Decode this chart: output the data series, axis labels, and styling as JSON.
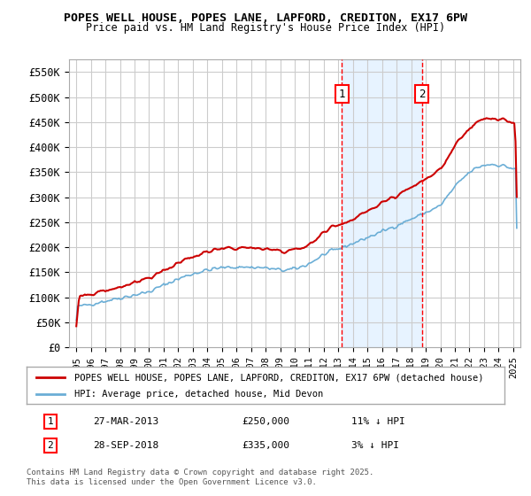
{
  "title1": "POPES WELL HOUSE, POPES LANE, LAPFORD, CREDITON, EX17 6PW",
  "title2": "Price paid vs. HM Land Registry's House Price Index (HPI)",
  "ylabel_ticks": [
    "£0",
    "£50K",
    "£100K",
    "£150K",
    "£200K",
    "£250K",
    "£300K",
    "£350K",
    "£400K",
    "£450K",
    "£500K",
    "£550K"
  ],
  "ytick_vals": [
    0,
    50000,
    100000,
    150000,
    200000,
    250000,
    300000,
    350000,
    400000,
    450000,
    500000,
    550000
  ],
  "ylim": [
    0,
    575000
  ],
  "xlim_start": 1994.5,
  "xlim_end": 2025.5,
  "hpi_color": "#6baed6",
  "price_color": "#cc0000",
  "sale1_date": 2013.23,
  "sale1_price": 250000,
  "sale2_date": 2018.74,
  "sale2_price": 335000,
  "legend_label1": "POPES WELL HOUSE, POPES LANE, LAPFORD, CREDITON, EX17 6PW (detached house)",
  "legend_label2": "HPI: Average price, detached house, Mid Devon",
  "annotation1_label": "27-MAR-2013",
  "annotation1_price": "£250,000",
  "annotation1_hpi": "11% ↓ HPI",
  "annotation2_label": "28-SEP-2018",
  "annotation2_price": "£335,000",
  "annotation2_hpi": "3% ↓ HPI",
  "footer": "Contains HM Land Registry data © Crown copyright and database right 2025.\nThis data is licensed under the Open Government Licence v3.0.",
  "bg_highlight_color": "#ddeeff",
  "grid_color": "#cccccc",
  "background_color": "#ffffff"
}
